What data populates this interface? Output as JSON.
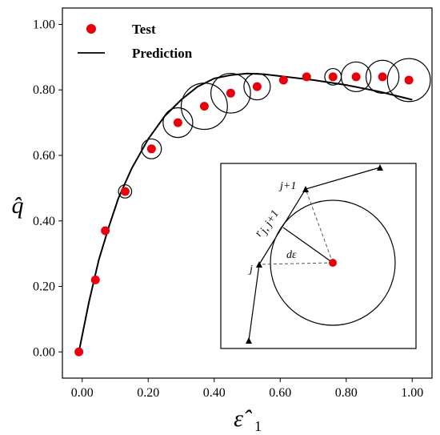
{
  "chart_data": {
    "type": "scatter",
    "title": "",
    "xlabel": "ε̂",
    "xlabel_subscript": "1",
    "ylabel": "q̂",
    "xlim": [
      -0.06,
      1.06
    ],
    "ylim": [
      -0.08,
      1.05
    ],
    "x_ticks": [
      "0.00",
      "0.20",
      "0.40",
      "0.60",
      "0.80",
      "1.00"
    ],
    "y_ticks": [
      "0.00",
      "0.20",
      "0.40",
      "0.60",
      "0.80",
      "1.00"
    ],
    "grid": false,
    "legend_position": "top-left",
    "series": [
      {
        "name": "Test",
        "kind": "points",
        "color": "#e8000b",
        "points": [
          {
            "x": -0.01,
            "y": 0.0,
            "r": 0
          },
          {
            "x": 0.04,
            "y": 0.22,
            "r": 0
          },
          {
            "x": 0.07,
            "y": 0.37,
            "r": 0
          },
          {
            "x": 0.13,
            "y": 0.49,
            "r": 0.02
          },
          {
            "x": 0.21,
            "y": 0.62,
            "r": 0.03
          },
          {
            "x": 0.29,
            "y": 0.7,
            "r": 0.045
          },
          {
            "x": 0.37,
            "y": 0.75,
            "r": 0.07
          },
          {
            "x": 0.45,
            "y": 0.79,
            "r": 0.06
          },
          {
            "x": 0.53,
            "y": 0.81,
            "r": 0.04
          },
          {
            "x": 0.61,
            "y": 0.83,
            "r": 0
          },
          {
            "x": 0.68,
            "y": 0.84,
            "r": 0
          },
          {
            "x": 0.76,
            "y": 0.84,
            "r": 0.025
          },
          {
            "x": 0.83,
            "y": 0.84,
            "r": 0.045
          },
          {
            "x": 0.91,
            "y": 0.84,
            "r": 0.05
          },
          {
            "x": 0.99,
            "y": 0.83,
            "r": 0.065
          }
        ]
      },
      {
        "name": "Prediction",
        "kind": "line",
        "color": "#000000",
        "x": [
          -0.01,
          0.02,
          0.05,
          0.08,
          0.11,
          0.15,
          0.2,
          0.25,
          0.3,
          0.35,
          0.4,
          0.45,
          0.5,
          0.55,
          0.6,
          0.7,
          0.8,
          0.9,
          1.0
        ],
        "y": [
          0.0,
          0.15,
          0.28,
          0.38,
          0.47,
          0.56,
          0.65,
          0.72,
          0.77,
          0.81,
          0.835,
          0.845,
          0.85,
          0.848,
          0.842,
          0.83,
          0.815,
          0.795,
          0.77
        ]
      }
    ],
    "inset": {
      "labels": {
        "j_plus_1": "j+1",
        "j": "j",
        "r": "r",
        "r_subscript": "j, j+1",
        "d_epsilon": "dε"
      }
    }
  }
}
